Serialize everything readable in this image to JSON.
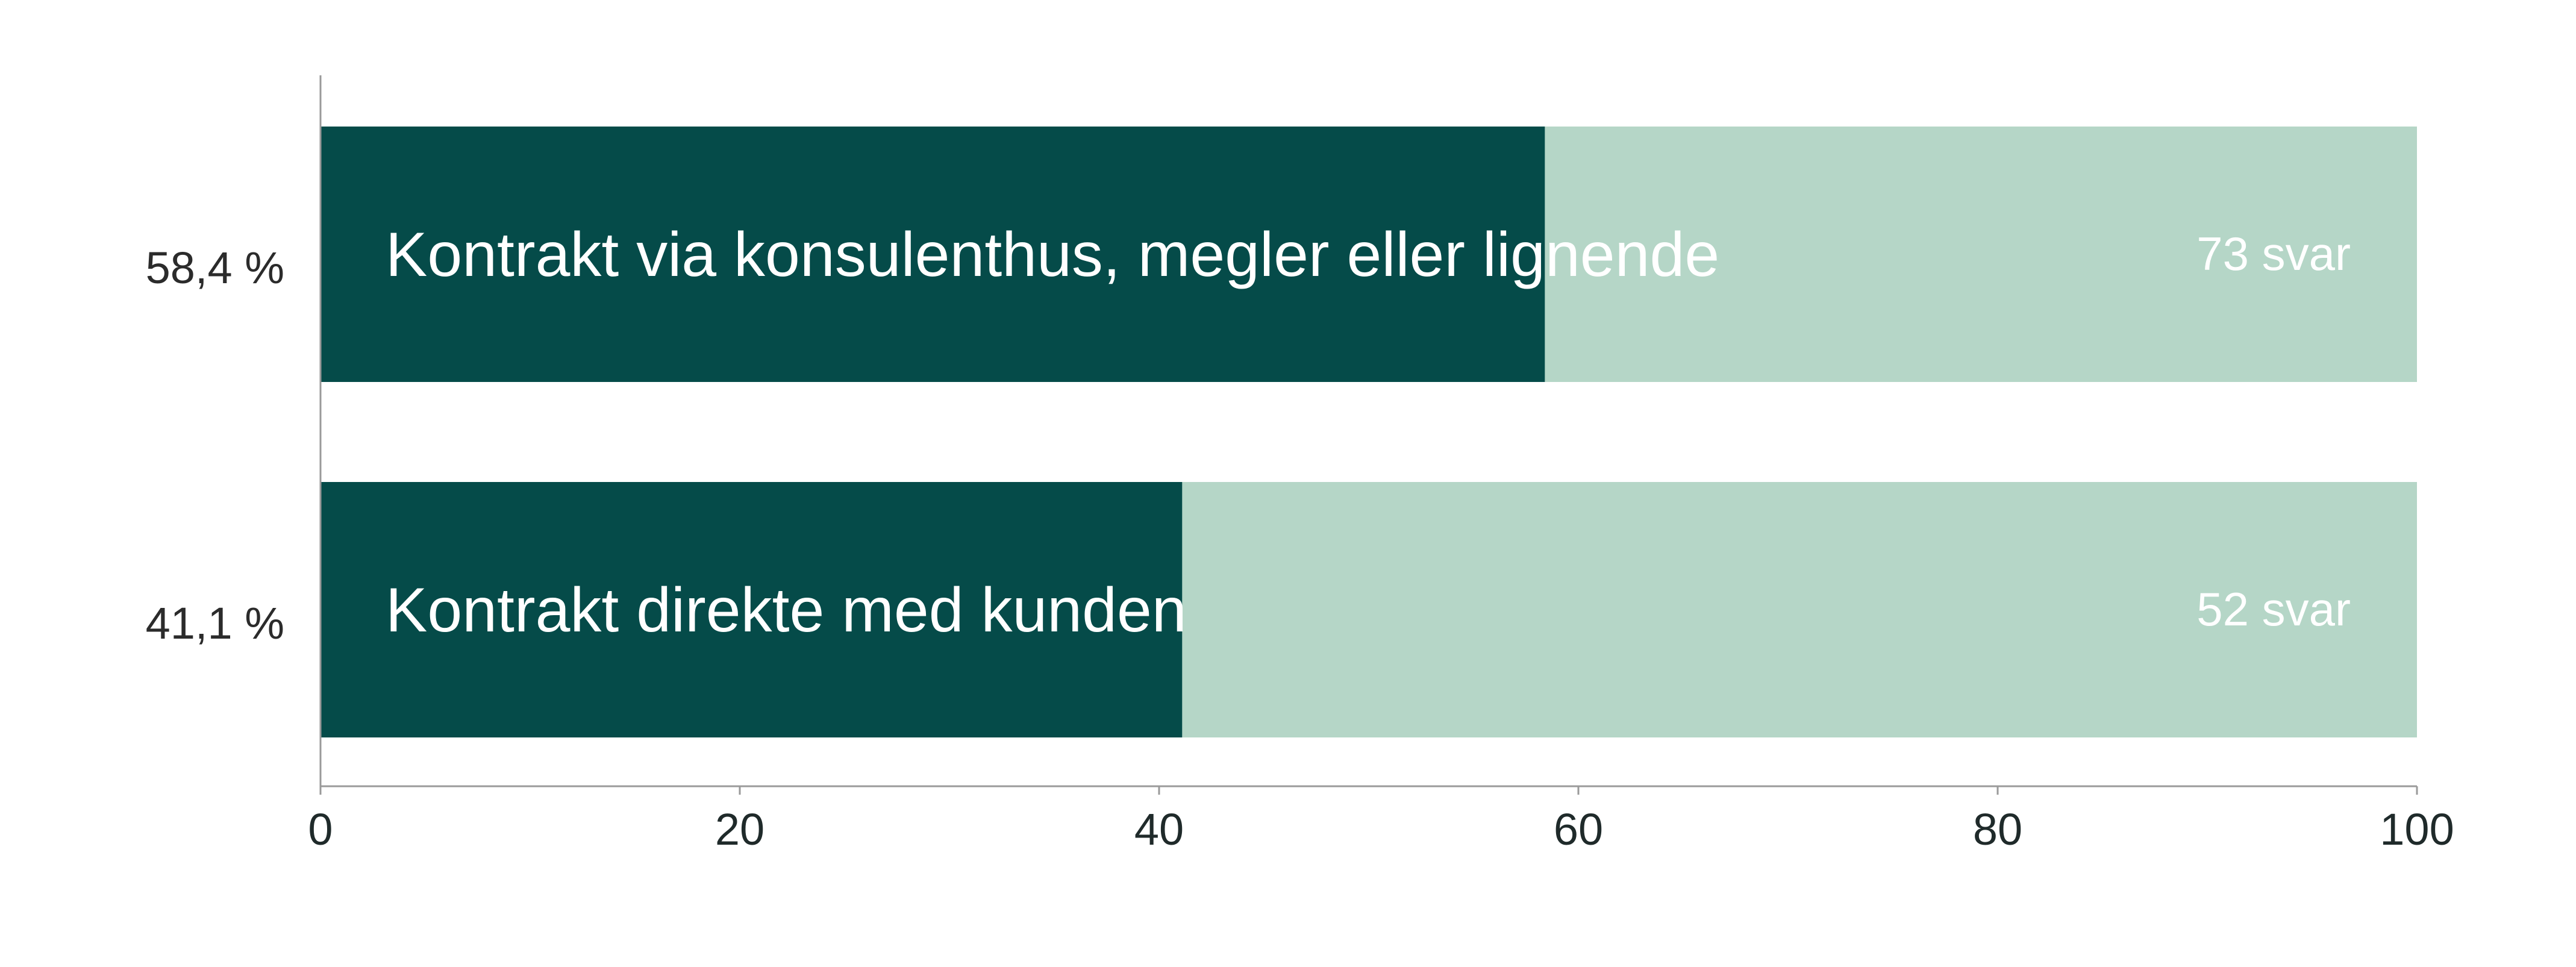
{
  "chart_data": {
    "type": "bar",
    "orientation": "horizontal",
    "stacked_on_background": true,
    "xlim": [
      0,
      100
    ],
    "x_ticks": [
      "0",
      "20",
      "40",
      "60",
      "80",
      "100"
    ],
    "bars": [
      {
        "label": "Kontrakt via konsulenthus, megler eller lignende",
        "value": 58.4,
        "value_label": "58,4 %",
        "count_label": "73 svar"
      },
      {
        "label": "Kontrakt direkte med kunden",
        "value": 41.1,
        "value_label": "41,1 %",
        "count_label": "52 svar"
      }
    ],
    "colors": {
      "value": "#054b49",
      "remainder": "#b5d6c7",
      "axis": "#9a9a9a"
    },
    "grid": false,
    "legend": "none"
  }
}
